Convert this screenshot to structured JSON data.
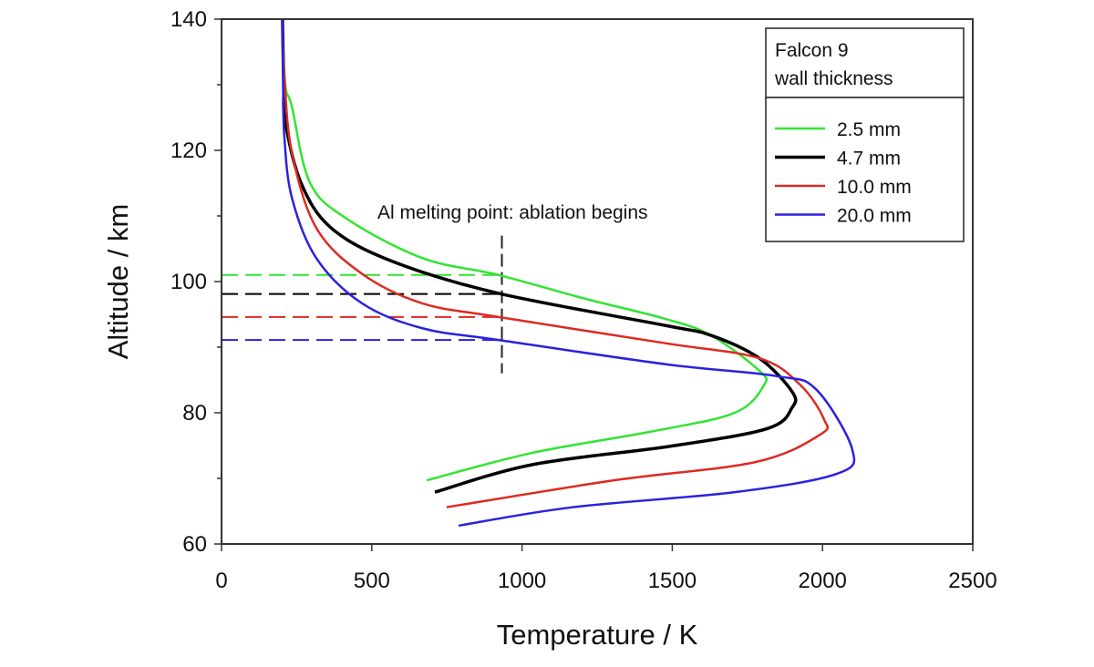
{
  "chart_data": {
    "type": "line",
    "title": "",
    "xlabel": "Temperature / K",
    "ylabel": "Altitude / km",
    "xlim": [
      0,
      2500
    ],
    "ylim": [
      60,
      140
    ],
    "x_ticks": [
      0,
      500,
      1000,
      1500,
      2000,
      2500
    ],
    "y_ticks": [
      60,
      80,
      100,
      120,
      140
    ],
    "grid": false,
    "legend": {
      "title_line1": "Falcon 9",
      "title_line2": "wall thickness",
      "placement": "top-right"
    },
    "annotation": {
      "text": "Al melting point: ablation begins",
      "melting_point_K": 933,
      "vertical_range_km": [
        86,
        107
      ]
    },
    "series": [
      {
        "name": "2.5 mm",
        "color": "#33e333",
        "ablation_altitude_km": 101.0,
        "points": [
          [
            203,
            140
          ],
          [
            212,
            130
          ],
          [
            234,
            126.7
          ],
          [
            294,
            115.1
          ],
          [
            416,
            109.6
          ],
          [
            667,
            103.6
          ],
          [
            922,
            101.0
          ],
          [
            1200,
            97.5
          ],
          [
            1478,
            94.3
          ],
          [
            1629,
            91.8
          ],
          [
            1790,
            86.4
          ],
          [
            1805,
            84.2
          ],
          [
            1708,
            80.0
          ],
          [
            1438,
            77.2
          ],
          [
            1035,
            73.9
          ],
          [
            683,
            69.7
          ]
        ]
      },
      {
        "name": "4.7 mm",
        "color": "#000000",
        "ablation_altitude_km": 98.1,
        "points": [
          [
            203,
            140
          ],
          [
            207,
            130
          ],
          [
            212,
            124.4
          ],
          [
            264,
            115.1
          ],
          [
            364,
            108.2
          ],
          [
            567,
            103.1
          ],
          [
            922,
            98.2
          ],
          [
            1478,
            93.3
          ],
          [
            1629,
            91.8
          ],
          [
            1790,
            88.3
          ],
          [
            1899,
            83.2
          ],
          [
            1899,
            80.8
          ],
          [
            1817,
            77.6
          ],
          [
            1493,
            74.9
          ],
          [
            1035,
            72.1
          ],
          [
            710,
            67.9
          ]
        ]
      },
      {
        "name": "10.0 mm",
        "color": "#dd2a22",
        "ablation_altitude_km": 94.6,
        "points": [
          [
            203,
            140
          ],
          [
            209,
            131.4
          ],
          [
            234,
            119.7
          ],
          [
            315,
            108.2
          ],
          [
            467,
            101.2
          ],
          [
            667,
            96.7
          ],
          [
            922,
            94.6
          ],
          [
            1478,
            90.6
          ],
          [
            1790,
            88.3
          ],
          [
            1927,
            84.2
          ],
          [
            2005,
            79.0
          ],
          [
            1993,
            76.7
          ],
          [
            1778,
            72.5
          ],
          [
            1305,
            69.7
          ],
          [
            749,
            65.6
          ]
        ]
      },
      {
        "name": "20.0 mm",
        "color": "#2a22dd",
        "ablation_altitude_km": 91.1,
        "points": [
          [
            203,
            140
          ],
          [
            205,
            130
          ],
          [
            209,
            122.1
          ],
          [
            234,
            112.8
          ],
          [
            315,
            103.6
          ],
          [
            467,
            96.7
          ],
          [
            667,
            92.9
          ],
          [
            922,
            91.1
          ],
          [
            1478,
            87.4
          ],
          [
            1845,
            85.6
          ],
          [
            1978,
            83.6
          ],
          [
            2099,
            74.4
          ],
          [
            2048,
            70.7
          ],
          [
            1708,
            67.9
          ],
          [
            1168,
            65.6
          ],
          [
            789,
            62.8
          ]
        ]
      }
    ]
  }
}
